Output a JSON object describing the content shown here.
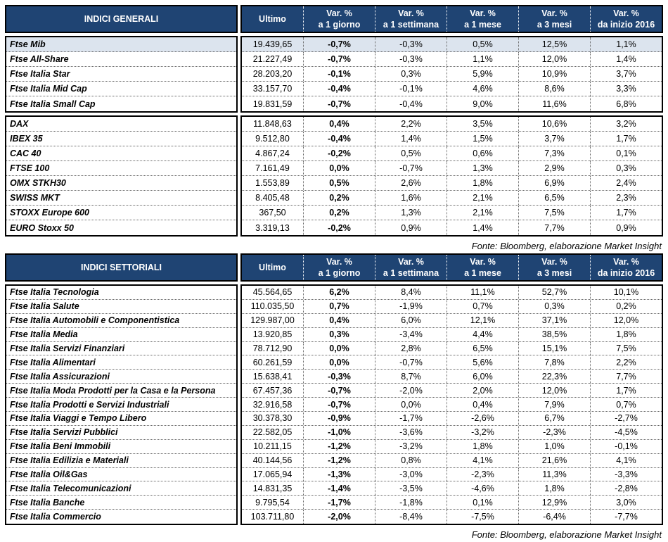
{
  "tables": [
    {
      "title": "INDICI GENERALI",
      "source": "Fonte: Bloomberg, elaborazione Market Insight",
      "columns": [
        {
          "line1": "Ultimo",
          "line2": ""
        },
        {
          "line1": "Var. %",
          "line2": "a 1 giorno"
        },
        {
          "line1": "Var. %",
          "line2": "a 1 settimana"
        },
        {
          "line1": "Var. %",
          "line2": "a 1 mese"
        },
        {
          "line1": "Var. %",
          "line2": "a 3 mesi"
        },
        {
          "line1": "Var. %",
          "line2": "da inizio 2016"
        }
      ],
      "groups": [
        {
          "rows": [
            {
              "name": "Ftse Mib",
              "ultimo": "19.439,65",
              "d1": "-0,7%",
              "w1": "-0,3%",
              "m1": "0,5%",
              "m3": "12,5%",
              "ytd": "1,1%",
              "highlight": true
            },
            {
              "name": "Ftse All-Share",
              "ultimo": "21.227,49",
              "d1": "-0,7%",
              "w1": "-0,3%",
              "m1": "1,1%",
              "m3": "12,0%",
              "ytd": "1,4%"
            },
            {
              "name": "Ftse Italia Star",
              "ultimo": "28.203,20",
              "d1": "-0,1%",
              "w1": "0,3%",
              "m1": "5,9%",
              "m3": "10,9%",
              "ytd": "3,7%"
            },
            {
              "name": "Ftse Italia Mid Cap",
              "ultimo": "33.157,70",
              "d1": "-0,4%",
              "w1": "-0,1%",
              "m1": "4,6%",
              "m3": "8,6%",
              "ytd": "3,3%"
            },
            {
              "name": "Ftse Italia Small Cap",
              "ultimo": "19.831,59",
              "d1": "-0,7%",
              "w1": "-0,4%",
              "m1": "9,0%",
              "m3": "11,6%",
              "ytd": "6,8%"
            }
          ]
        },
        {
          "rows": [
            {
              "name": "DAX",
              "ultimo": "11.848,63",
              "d1": "0,4%",
              "w1": "2,2%",
              "m1": "3,5%",
              "m3": "10,6%",
              "ytd": "3,2%"
            },
            {
              "name": "IBEX 35",
              "ultimo": "9.512,80",
              "d1": "-0,4%",
              "w1": "1,4%",
              "m1": "1,5%",
              "m3": "3,7%",
              "ytd": "1,7%"
            },
            {
              "name": "CAC 40",
              "ultimo": "4.867,24",
              "d1": "-0,2%",
              "w1": "0,5%",
              "m1": "0,6%",
              "m3": "7,3%",
              "ytd": "0,1%"
            },
            {
              "name": "FTSE 100",
              "ultimo": "7.161,49",
              "d1": "0,0%",
              "w1": "-0,7%",
              "m1": "1,3%",
              "m3": "2,9%",
              "ytd": "0,3%"
            },
            {
              "name": "OMX STKH30",
              "ultimo": "1.553,89",
              "d1": "0,5%",
              "w1": "2,6%",
              "m1": "1,8%",
              "m3": "6,9%",
              "ytd": "2,4%"
            },
            {
              "name": "SWISS MKT",
              "ultimo": "8.405,48",
              "d1": "0,2%",
              "w1": "1,6%",
              "m1": "2,1%",
              "m3": "6,5%",
              "ytd": "2,3%"
            },
            {
              "name": "STOXX Europe 600",
              "ultimo": "367,50",
              "d1": "0,2%",
              "w1": "1,3%",
              "m1": "2,1%",
              "m3": "7,5%",
              "ytd": "1,7%"
            },
            {
              "name": "EURO Stoxx 50",
              "ultimo": "3.319,13",
              "d1": "-0,2%",
              "w1": "0,9%",
              "m1": "1,4%",
              "m3": "7,7%",
              "ytd": "0,9%"
            }
          ]
        }
      ]
    },
    {
      "title": "INDICI SETTORIALI",
      "source": "Fonte: Bloomberg, elaborazione Market Insight",
      "columns": [
        {
          "line1": "Ultimo",
          "line2": ""
        },
        {
          "line1": "Var. %",
          "line2": "a 1 giorno"
        },
        {
          "line1": "Var. %",
          "line2": "a 1 settimana"
        },
        {
          "line1": "Var. %",
          "line2": "a 1 mese"
        },
        {
          "line1": "Var. %",
          "line2": "a 3 mesi"
        },
        {
          "line1": "Var. %",
          "line2": "da inizio 2016"
        }
      ],
      "groups": [
        {
          "rows": [
            {
              "name": "Ftse Italia Tecnologia",
              "ultimo": "45.564,65",
              "d1": "6,2%",
              "w1": "8,4%",
              "m1": "11,1%",
              "m3": "52,7%",
              "ytd": "10,1%"
            },
            {
              "name": "Ftse Italia Salute",
              "ultimo": "110.035,50",
              "d1": "0,7%",
              "w1": "-1,9%",
              "m1": "0,7%",
              "m3": "0,3%",
              "ytd": "0,2%"
            },
            {
              "name": "Ftse Italia Automobili e Componentistica",
              "ultimo": "129.987,00",
              "d1": "0,4%",
              "w1": "6,0%",
              "m1": "12,1%",
              "m3": "37,1%",
              "ytd": "12,0%"
            },
            {
              "name": "Ftse Italia Media",
              "ultimo": "13.920,85",
              "d1": "0,3%",
              "w1": "-3,4%",
              "m1": "4,4%",
              "m3": "38,5%",
              "ytd": "1,8%"
            },
            {
              "name": "Ftse Italia Servizi Finanziari",
              "ultimo": "78.712,90",
              "d1": "0,0%",
              "w1": "2,8%",
              "m1": "6,5%",
              "m3": "15,1%",
              "ytd": "7,5%"
            },
            {
              "name": "Ftse Italia Alimentari",
              "ultimo": "60.261,59",
              "d1": "0,0%",
              "w1": "-0,7%",
              "m1": "5,6%",
              "m3": "7,8%",
              "ytd": "2,2%"
            },
            {
              "name": "Ftse Italia Assicurazioni",
              "ultimo": "15.638,41",
              "d1": "-0,3%",
              "w1": "8,7%",
              "m1": "6,0%",
              "m3": "22,3%",
              "ytd": "7,7%"
            },
            {
              "name": "Ftse Italia Moda Prodotti per la Casa e la Persona",
              "ultimo": "67.457,36",
              "d1": "-0,7%",
              "w1": "-2,0%",
              "m1": "2,0%",
              "m3": "12,0%",
              "ytd": "1,7%"
            },
            {
              "name": "Ftse Italia Prodotti e Servizi Industriali",
              "ultimo": "32.916,58",
              "d1": "-0,7%",
              "w1": "0,0%",
              "m1": "0,4%",
              "m3": "7,9%",
              "ytd": "0,7%"
            },
            {
              "name": "Ftse Italia Viaggi e Tempo Libero",
              "ultimo": "30.378,30",
              "d1": "-0,9%",
              "w1": "-1,7%",
              "m1": "-2,6%",
              "m3": "6,7%",
              "ytd": "-2,7%"
            },
            {
              "name": "Ftse Italia Servizi Pubblici",
              "ultimo": "22.582,05",
              "d1": "-1,0%",
              "w1": "-3,6%",
              "m1": "-3,2%",
              "m3": "-2,3%",
              "ytd": "-4,5%"
            },
            {
              "name": "Ftse Italia Beni Immobili",
              "ultimo": "10.211,15",
              "d1": "-1,2%",
              "w1": "-3,2%",
              "m1": "1,8%",
              "m3": "1,0%",
              "ytd": "-0,1%"
            },
            {
              "name": "Ftse Italia Edilizia e Materiali",
              "ultimo": "40.144,56",
              "d1": "-1,2%",
              "w1": "0,8%",
              "m1": "4,1%",
              "m3": "21,6%",
              "ytd": "4,1%"
            },
            {
              "name": "Ftse Italia Oil&Gas",
              "ultimo": "17.065,94",
              "d1": "-1,3%",
              "w1": "-3,0%",
              "m1": "-2,3%",
              "m3": "11,3%",
              "ytd": "-3,3%"
            },
            {
              "name": "Ftse Italia Telecomunicazioni",
              "ultimo": "14.831,35",
              "d1": "-1,4%",
              "w1": "-3,5%",
              "m1": "-4,6%",
              "m3": "1,8%",
              "ytd": "-2,8%"
            },
            {
              "name": "Ftse Italia Banche",
              "ultimo": "9.795,54",
              "d1": "-1,7%",
              "w1": "-1,8%",
              "m1": "0,1%",
              "m3": "12,9%",
              "ytd": "3,0%"
            },
            {
              "name": "Ftse Italia Commercio",
              "ultimo": "103.711,80",
              "d1": "-2,0%",
              "w1": "-8,4%",
              "m1": "-7,5%",
              "m3": "-6,4%",
              "ytd": "-7,7%"
            }
          ]
        }
      ]
    }
  ],
  "colors": {
    "header_navy": "#1F4473",
    "highlight_row": "#DCE4EE",
    "border_black": "#000000"
  }
}
